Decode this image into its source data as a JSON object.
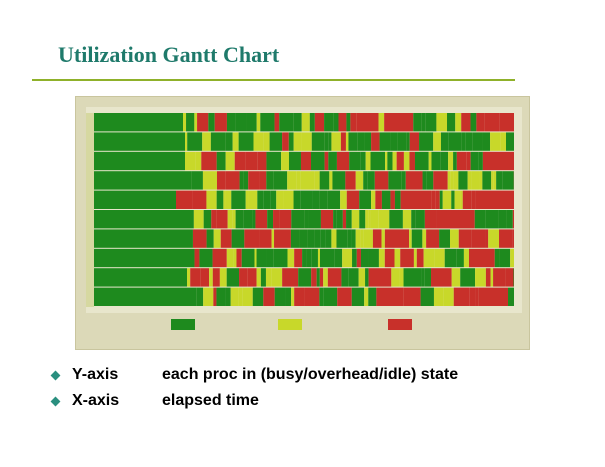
{
  "slide": {
    "title": "Utilization Gantt Chart"
  },
  "figure": {
    "kind": "utilization gantt chart image",
    "state_colors": {
      "busy": "#1e8a1e",
      "overhead": "#c8d82a",
      "idle": "#c8302a"
    },
    "processor_rows": 10
  },
  "bullets": [
    {
      "term": "Y-axis",
      "description": "each proc in (busy/overhead/idle) state"
    },
    {
      "term": "X-axis",
      "description": "elapsed time"
    }
  ],
  "colors": {
    "title": "#1f7a6b",
    "rule": "#8fb12a",
    "bullet": "#2a8f7f"
  }
}
